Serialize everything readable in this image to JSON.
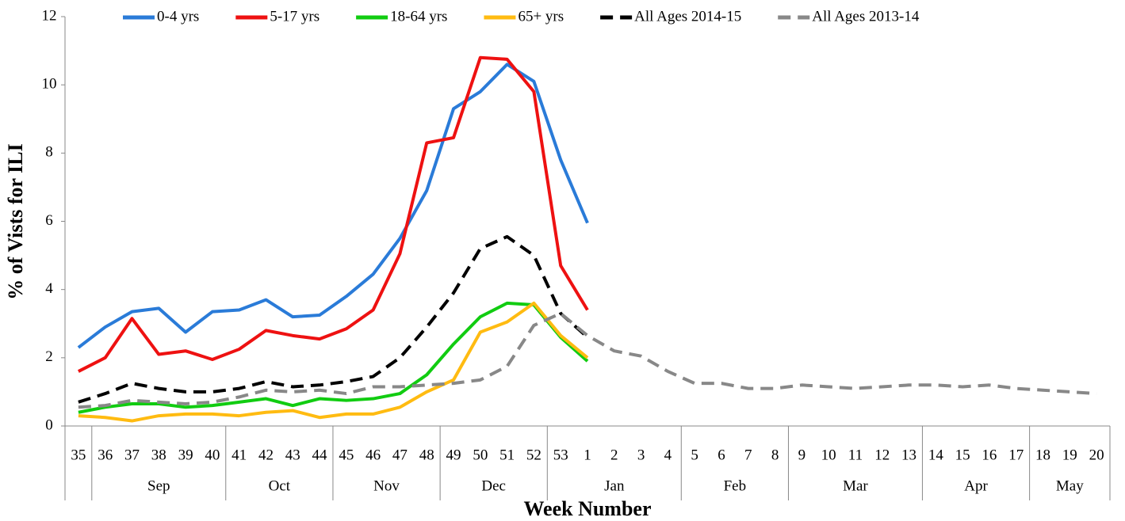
{
  "chart_data": {
    "type": "line",
    "x_label": "Week Number",
    "y_label": "% of Vists for ILI",
    "categories": [
      "35",
      "36",
      "37",
      "38",
      "39",
      "40",
      "41",
      "42",
      "43",
      "44",
      "45",
      "46",
      "47",
      "48",
      "49",
      "50",
      "51",
      "52",
      "53",
      "1",
      "2",
      "3",
      "4",
      "5",
      "6",
      "7",
      "8",
      "9",
      "10",
      "11",
      "12",
      "13",
      "14",
      "15",
      "16",
      "17",
      "18",
      "19",
      "20"
    ],
    "x_groups": [
      null,
      "Sep",
      "Sep",
      "Sep",
      "Sep",
      "Sep",
      "Oct",
      "Oct",
      "Oct",
      "Oct",
      "Nov",
      "Nov",
      "Nov",
      "Nov",
      "Dec",
      "Dec",
      "Dec",
      "Dec",
      "Jan",
      "Jan",
      "Jan",
      "Jan",
      "Jan",
      "Feb",
      "Feb",
      "Feb",
      "Feb",
      "Mar",
      "Mar",
      "Mar",
      "Mar",
      "Mar",
      "Apr",
      "Apr",
      "Apr",
      "Apr",
      "May",
      "May",
      "May"
    ],
    "ylim": [
      0,
      12
    ],
    "yticks": [
      0,
      2,
      4,
      6,
      8,
      10,
      12
    ],
    "grid": false,
    "legend": "top",
    "series": [
      {
        "name": "0-4 yrs",
        "color": "#2a7bd8",
        "dashed": false,
        "values": [
          2.3,
          2.9,
          3.35,
          3.45,
          2.75,
          3.35,
          3.4,
          3.7,
          3.2,
          3.25,
          3.8,
          4.45,
          5.5,
          6.9,
          9.3,
          9.8,
          10.6,
          10.1,
          7.8,
          5.95,
          null,
          null,
          null,
          null,
          null,
          null,
          null,
          null,
          null,
          null,
          null,
          null,
          null,
          null,
          null,
          null,
          null,
          null,
          null
        ]
      },
      {
        "name": "5-17 yrs",
        "color": "#ee1111",
        "dashed": false,
        "values": [
          1.6,
          2.0,
          3.15,
          2.1,
          2.2,
          1.95,
          2.25,
          2.8,
          2.65,
          2.55,
          2.85,
          3.4,
          5.05,
          8.3,
          8.45,
          10.8,
          10.75,
          9.8,
          4.7,
          3.4,
          null,
          null,
          null,
          null,
          null,
          null,
          null,
          null,
          null,
          null,
          null,
          null,
          null,
          null,
          null,
          null,
          null,
          null,
          null
        ]
      },
      {
        "name": "18-64 yrs",
        "color": "#11cc11",
        "dashed": false,
        "values": [
          0.4,
          0.55,
          0.65,
          0.65,
          0.55,
          0.6,
          0.7,
          0.8,
          0.6,
          0.8,
          0.75,
          0.8,
          0.95,
          1.5,
          2.4,
          3.2,
          3.6,
          3.55,
          2.6,
          1.9,
          null,
          null,
          null,
          null,
          null,
          null,
          null,
          null,
          null,
          null,
          null,
          null,
          null,
          null,
          null,
          null,
          null,
          null,
          null
        ]
      },
      {
        "name": "65+ yrs",
        "color": "#ffbb11",
        "dashed": false,
        "values": [
          0.3,
          0.25,
          0.15,
          0.3,
          0.35,
          0.35,
          0.3,
          0.4,
          0.45,
          0.25,
          0.35,
          0.35,
          0.55,
          1.0,
          1.35,
          2.75,
          3.05,
          3.6,
          2.65,
          2.0,
          null,
          null,
          null,
          null,
          null,
          null,
          null,
          null,
          null,
          null,
          null,
          null,
          null,
          null,
          null,
          null,
          null,
          null,
          null
        ]
      },
      {
        "name": "All Ages 2014-15",
        "color": "#000000",
        "dashed": true,
        "values": [
          0.7,
          0.95,
          1.25,
          1.1,
          1.0,
          1.0,
          1.1,
          1.3,
          1.15,
          1.2,
          1.3,
          1.45,
          2.0,
          2.9,
          3.9,
          5.2,
          5.55,
          5.0,
          3.3,
          2.6,
          null,
          null,
          null,
          null,
          null,
          null,
          null,
          null,
          null,
          null,
          null,
          null,
          null,
          null,
          null,
          null,
          null,
          null,
          null
        ]
      },
      {
        "name": "All Ages 2013-14",
        "color": "#888888",
        "dashed": true,
        "values": [
          0.55,
          0.6,
          0.75,
          0.7,
          0.65,
          0.7,
          0.85,
          1.05,
          1.0,
          1.05,
          0.95,
          1.15,
          1.15,
          1.2,
          1.25,
          1.35,
          1.75,
          2.95,
          3.3,
          2.65,
          2.2,
          2.05,
          1.6,
          1.25,
          1.25,
          1.1,
          1.1,
          1.2,
          1.15,
          1.1,
          1.15,
          1.2,
          1.2,
          1.15,
          1.2,
          1.1,
          1.05,
          1.0,
          0.95
        ]
      }
    ]
  }
}
